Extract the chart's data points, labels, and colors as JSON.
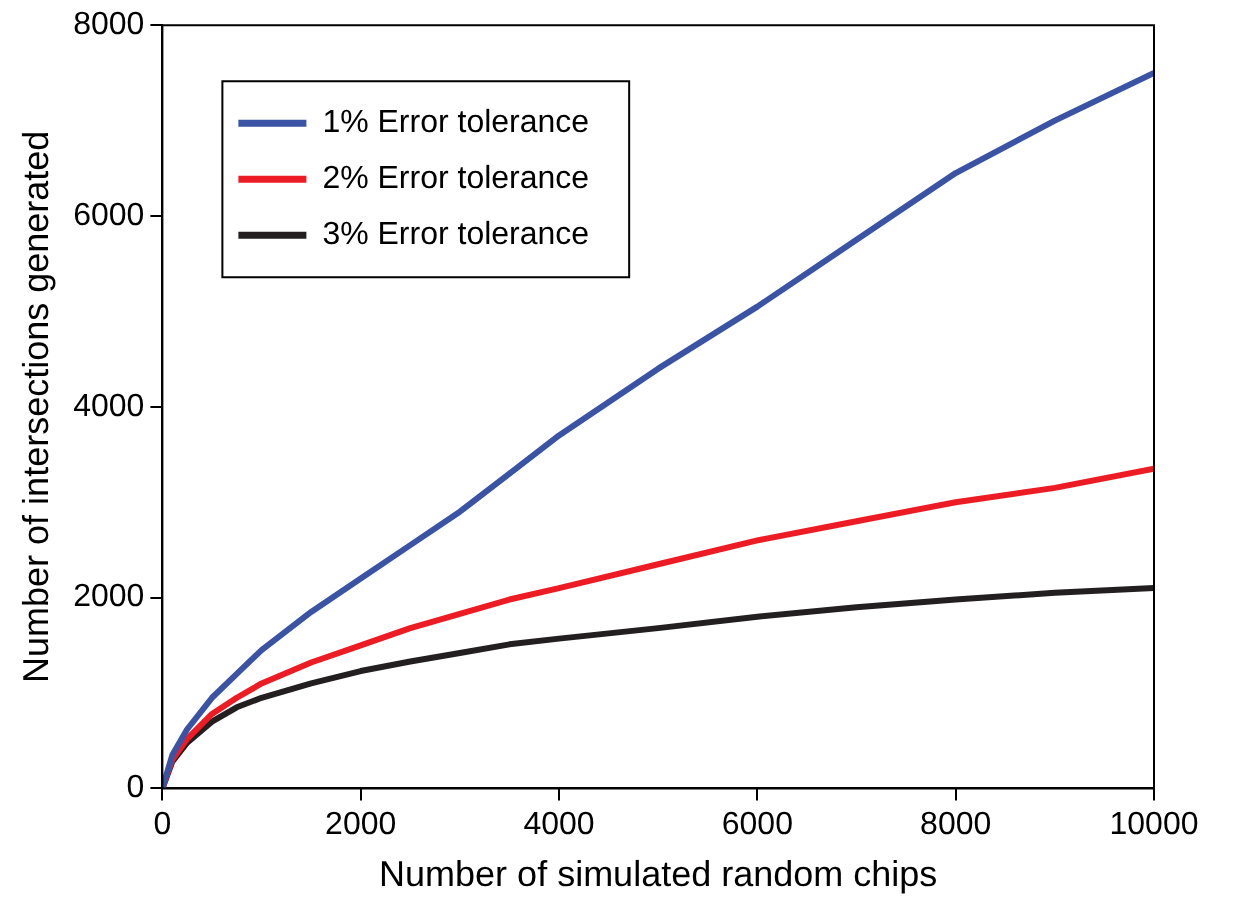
{
  "chart_data": {
    "type": "line",
    "xlabel": "Number of simulated random chips",
    "ylabel": "Number of intersections generated",
    "x": [
      0,
      100,
      250,
      500,
      750,
      1000,
      1500,
      2000,
      2500,
      3000,
      3500,
      4000,
      5000,
      6000,
      7000,
      8000,
      9000,
      10000
    ],
    "series": [
      {
        "name": "1% Error tolerance",
        "color": "#3a53a4",
        "values": [
          0,
          350,
          620,
          950,
          1200,
          1450,
          1850,
          2200,
          2550,
          2900,
          3300,
          3700,
          4400,
          5050,
          5750,
          6450,
          7000,
          7500
        ]
      },
      {
        "name": "2% Error tolerance",
        "color": "#ed1c24",
        "values": [
          0,
          300,
          520,
          780,
          950,
          1100,
          1320,
          1500,
          1680,
          1830,
          1980,
          2100,
          2350,
          2600,
          2800,
          3000,
          3150,
          3350
        ]
      },
      {
        "name": "3% Error tolerance",
        "color": "#231f20",
        "values": [
          0,
          280,
          480,
          700,
          850,
          950,
          1100,
          1230,
          1330,
          1420,
          1510,
          1570,
          1680,
          1800,
          1900,
          1980,
          2050,
          2100
        ]
      }
    ],
    "xlim": [
      0,
      10000
    ],
    "xticks": [
      0,
      2000,
      4000,
      6000,
      8000,
      10000
    ],
    "ylim": [
      0,
      8000
    ],
    "yticks": [
      0,
      2000,
      4000,
      6000,
      8000
    ],
    "grid": false,
    "legend": "top left",
    "marker": "none",
    "line_style": "solid"
  }
}
